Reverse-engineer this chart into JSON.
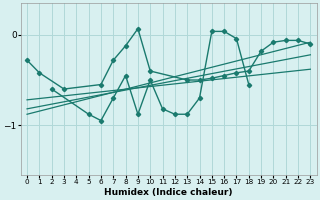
{
  "xlabel": "Humidex (Indice chaleur)",
  "bg_color": "#d8f0f0",
  "grid_color": "#b0d8d8",
  "line_color": "#1a7a6e",
  "xlim": [
    -0.5,
    23.5
  ],
  "ylim": [
    -1.55,
    0.35
  ],
  "yticks": [
    0,
    -1
  ],
  "xticks": [
    0,
    1,
    2,
    3,
    4,
    5,
    6,
    7,
    8,
    9,
    10,
    11,
    12,
    13,
    14,
    15,
    16,
    17,
    18,
    19,
    20,
    21,
    22,
    23
  ],
  "series": [
    {
      "x": [
        0,
        1,
        3,
        6,
        7,
        8,
        9,
        10,
        13,
        14,
        15,
        16,
        17,
        18,
        19,
        20,
        21,
        22,
        23
      ],
      "y": [
        -0.28,
        -0.42,
        -0.6,
        -0.55,
        -0.28,
        -0.12,
        0.07,
        -0.4,
        -0.5,
        -0.5,
        -0.48,
        -0.45,
        -0.42,
        -0.4,
        -0.18,
        -0.08,
        -0.06,
        -0.06,
        -0.1
      ],
      "marker": true,
      "lw": 1.0
    },
    {
      "x": [
        2,
        5,
        6,
        7,
        8,
        9,
        10,
        11,
        12,
        13,
        14,
        15,
        16,
        17,
        18
      ],
      "y": [
        -0.6,
        -0.88,
        -0.95,
        -0.7,
        -0.45,
        -0.88,
        -0.5,
        -0.82,
        -0.88,
        -0.88,
        -0.7,
        0.04,
        0.04,
        -0.04,
        -0.55
      ],
      "marker": true,
      "lw": 1.0
    },
    {
      "x": [
        0,
        23
      ],
      "y": [
        -0.72,
        -0.38
      ],
      "marker": false,
      "lw": 0.9
    },
    {
      "x": [
        0,
        23
      ],
      "y": [
        -0.82,
        -0.22
      ],
      "marker": false,
      "lw": 0.9
    },
    {
      "x": [
        0,
        23
      ],
      "y": [
        -0.88,
        -0.08
      ],
      "marker": false,
      "lw": 0.9
    }
  ]
}
